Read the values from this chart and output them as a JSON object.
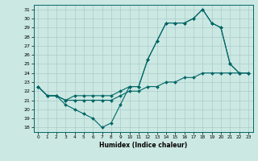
{
  "xlabel": "Humidex (Indice chaleur)",
  "xlim": [
    -0.5,
    23.5
  ],
  "ylim": [
    17.5,
    31.5
  ],
  "yticks": [
    18,
    19,
    20,
    21,
    22,
    23,
    24,
    25,
    26,
    27,
    28,
    29,
    30,
    31
  ],
  "xticks": [
    0,
    1,
    2,
    3,
    4,
    5,
    6,
    7,
    8,
    9,
    10,
    11,
    12,
    13,
    14,
    15,
    16,
    17,
    18,
    19,
    20,
    21,
    22,
    23
  ],
  "background_color": "#cce8e2",
  "grid_color": "#aacccc",
  "line_color": "#006666",
  "line1_y": [
    22.5,
    21.5,
    21.5,
    20.5,
    20.0,
    19.5,
    19.0,
    18.0,
    18.5,
    20.5,
    22.5,
    22.5,
    25.5,
    27.5,
    29.5,
    29.5,
    29.5,
    30.0,
    31.0,
    29.5,
    29.0,
    25.0,
    24.0,
    24.0
  ],
  "line2_y": [
    22.5,
    21.5,
    21.5,
    21.0,
    21.5,
    21.5,
    21.5,
    21.5,
    21.5,
    22.0,
    22.5,
    22.5,
    25.5,
    27.5,
    29.5,
    29.5,
    29.5,
    30.0,
    31.0,
    29.5,
    29.0,
    25.0,
    24.0,
    24.0
  ],
  "line3_y": [
    22.5,
    21.5,
    21.5,
    21.0,
    21.0,
    21.0,
    21.0,
    21.0,
    21.0,
    21.5,
    22.0,
    22.0,
    22.5,
    22.5,
    23.0,
    23.0,
    23.5,
    23.5,
    24.0,
    24.0,
    24.0,
    24.0,
    24.0,
    24.0
  ]
}
